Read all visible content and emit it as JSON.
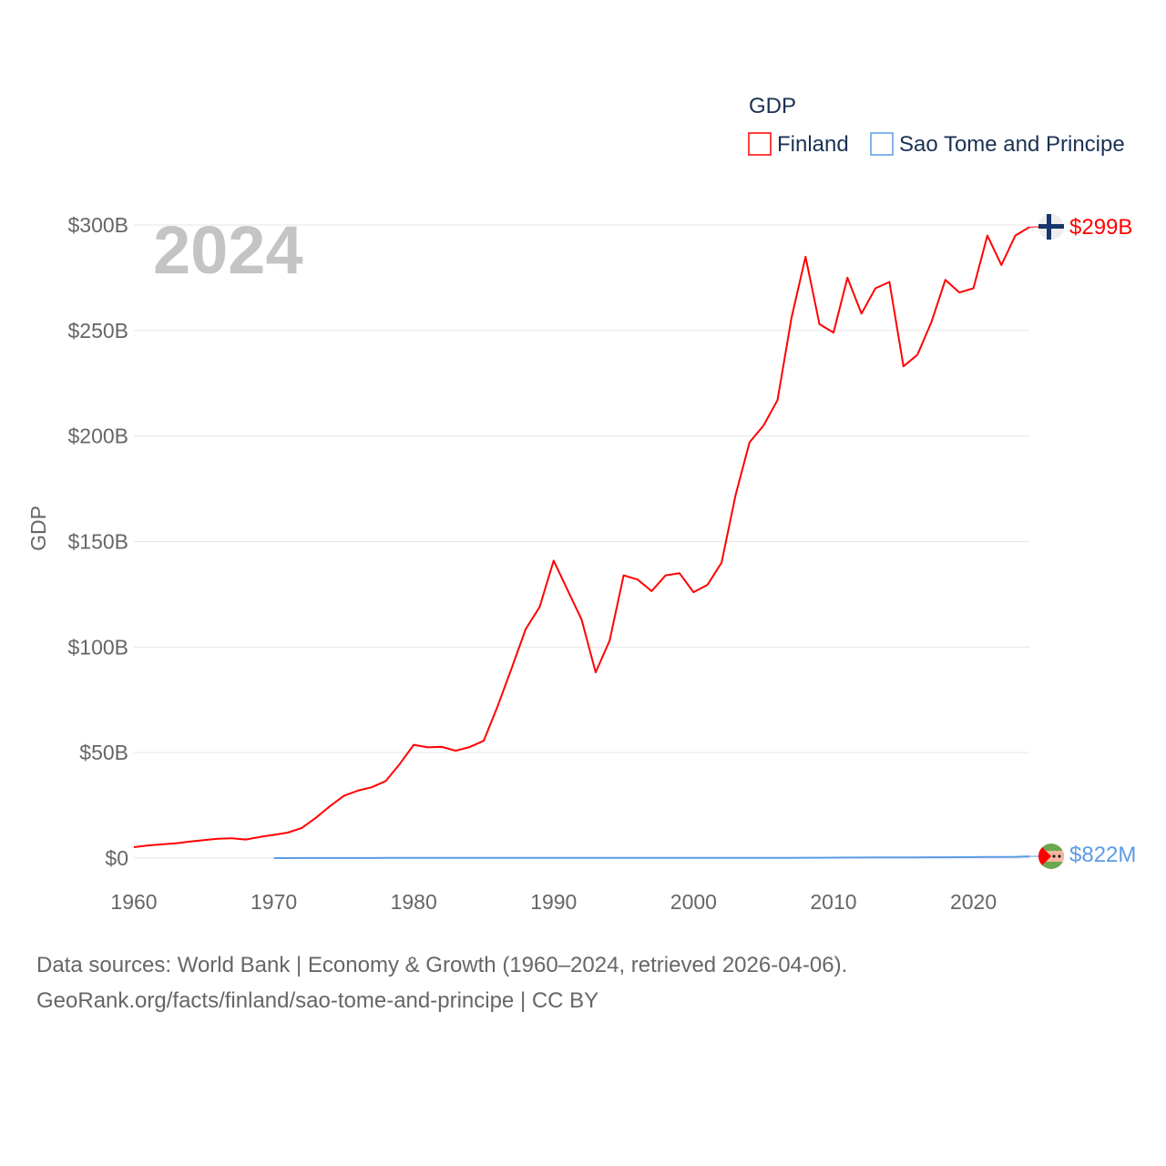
{
  "chart_data": {
    "type": "line",
    "title": "GDP",
    "ylabel": "GDP",
    "xlabel": "",
    "year_label": "2024",
    "ylim": [
      0,
      300
    ],
    "xlim": [
      1960,
      2024
    ],
    "grid": true,
    "legend_position": "top-right",
    "y_ticks": [
      {
        "v": 0,
        "label": "$0"
      },
      {
        "v": 50,
        "label": "$50B"
      },
      {
        "v": 100,
        "label": "$100B"
      },
      {
        "v": 150,
        "label": "$150B"
      },
      {
        "v": 200,
        "label": "$200B"
      },
      {
        "v": 250,
        "label": "$250B"
      },
      {
        "v": 300,
        "label": "$300B"
      }
    ],
    "x_ticks": [
      1960,
      1970,
      1980,
      1990,
      2000,
      2010,
      2020
    ],
    "series": [
      {
        "name": "Finland",
        "color": "#ff0000",
        "end_label": "$299B",
        "start_year": 1960,
        "values": [
          5.2,
          6,
          6.5,
          7,
          7.8,
          8.5,
          9.2,
          9.4,
          8.8,
          10,
          11,
          12.1,
          14.3,
          19.1,
          24.5,
          29.5,
          32,
          33.6,
          36.5,
          44.6,
          53.7,
          52.5,
          52.7,
          50.9,
          52.6,
          55.6,
          72,
          90,
          108.5,
          119,
          141,
          127,
          113,
          88,
          103,
          134,
          132,
          126.5,
          134,
          135,
          126,
          129.5,
          140,
          172,
          197,
          205,
          217,
          256,
          285,
          253,
          249,
          275,
          258,
          270,
          273,
          233,
          238.5,
          254,
          274,
          268,
          270,
          295,
          281,
          295,
          299
        ]
      },
      {
        "name": "Sao Tome and Principe",
        "color": "#5b9be6",
        "end_label": "$822M",
        "start_year": 1970,
        "values": [
          0.02,
          0.02,
          0.03,
          0.03,
          0.04,
          0.05,
          0.05,
          0.06,
          0.07,
          0.08,
          0.09,
          0.09,
          0.09,
          0.08,
          0.08,
          0.08,
          0.1,
          0.1,
          0.1,
          0.1,
          0.1,
          0.1,
          0.1,
          0.1,
          0.1,
          0.1,
          0.1,
          0.1,
          0.1,
          0.1,
          0.1,
          0.1,
          0.1,
          0.1,
          0.1,
          0.1,
          0.13,
          0.14,
          0.18,
          0.19,
          0.2,
          0.25,
          0.27,
          0.3,
          0.35,
          0.32,
          0.34,
          0.38,
          0.41,
          0.43,
          0.47,
          0.53,
          0.55,
          0.6,
          0.822
        ]
      }
    ]
  },
  "footer": {
    "line1": "Data sources: World Bank | Economy & Growth (1960–2024, retrieved 2026-04-06).",
    "line2": "GeoRank.org/facts/finland/sao-tome-and-principe | CC BY"
  }
}
